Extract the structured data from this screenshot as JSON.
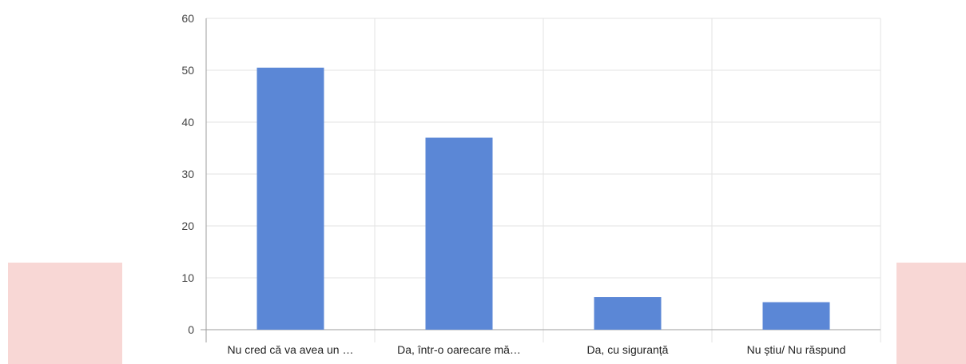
{
  "chart_data": {
    "type": "bar",
    "title": "",
    "xlabel": "",
    "ylabel": "",
    "categories": [
      "Nu cred că va avea un …",
      "Da, într-o oarecare mă…",
      "Da, cu siguranță",
      "Nu știu/ Nu răspund"
    ],
    "values": [
      50.5,
      37,
      6.3,
      5.3
    ],
    "ylim": [
      0,
      60
    ],
    "yticks": [
      0,
      10,
      20,
      30,
      40,
      50,
      60
    ],
    "grid": true,
    "legend": "none",
    "bar_color": "#5b87d6"
  },
  "colors": {
    "side_panel": "#f8d7d5",
    "grid": "#e3e3e3",
    "axis": "#9e9e9e"
  }
}
